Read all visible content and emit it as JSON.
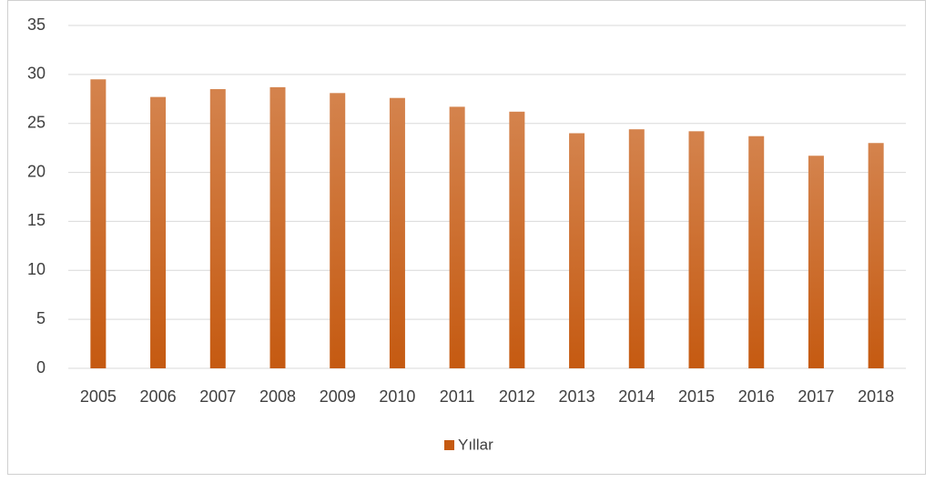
{
  "chart_data": {
    "type": "bar",
    "categories": [
      "2005",
      "2006",
      "2007",
      "2008",
      "2009",
      "2010",
      "2011",
      "2012",
      "2013",
      "2014",
      "2015",
      "2016",
      "2017",
      "2018"
    ],
    "series": [
      {
        "name": "Yıllar",
        "color": "#c55a11",
        "values": [
          29.5,
          27.7,
          28.5,
          28.7,
          28.1,
          27.6,
          26.7,
          26.2,
          24.0,
          24.4,
          24.2,
          23.7,
          21.7,
          23.0
        ]
      }
    ],
    "ylim": [
      0,
      35
    ],
    "yticks": [
      0,
      5,
      10,
      15,
      20,
      25,
      30,
      35
    ],
    "grid": true,
    "legend": "bottom"
  }
}
